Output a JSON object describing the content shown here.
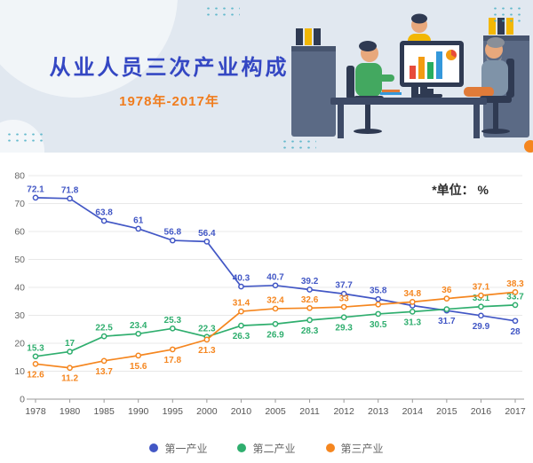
{
  "header": {
    "title": "从业人员三次产业构成",
    "subtitle": "1978年-2017年",
    "title_color": "#3447c3",
    "subtitle_color": "#f07c1d",
    "background_color": "#e1e8f0"
  },
  "chart": {
    "unit_note": "*单位： %"
  },
  "chart_data": {
    "type": "line",
    "title": "从业人员三次产业构成 1978年-2017年",
    "xlabel": "",
    "ylabel": "",
    "ylim": [
      0,
      80
    ],
    "yticks": [
      0,
      10,
      20,
      30,
      40,
      50,
      60,
      70,
      80
    ],
    "grid": true,
    "legend_position": "bottom",
    "categories": [
      "1978",
      "1980",
      "1985",
      "1990",
      "1995",
      "2000",
      "2010",
      "2005",
      "2011",
      "2012",
      "2013",
      "2014",
      "2015",
      "2016",
      "2017"
    ],
    "series": [
      {
        "name": "第一产业",
        "color": "#4257c5",
        "values": [
          72.1,
          71.8,
          63.8,
          61,
          56.8,
          56.4,
          40.3,
          40.7,
          39.2,
          37.7,
          35.8,
          33.5,
          31.7,
          29.9,
          28
        ],
        "labels": [
          "72.1",
          "71.8",
          "63.8",
          "61",
          "56.8",
          "56.4",
          "40.3",
          "40.7",
          "39.2",
          "37.7",
          "35.8",
          "",
          "31.7",
          "29.9",
          "28"
        ],
        "label_side": [
          "above",
          "above",
          "above",
          "above",
          "above",
          "above",
          "above",
          "above",
          "above",
          "above",
          "above",
          "",
          "below",
          "below",
          "below"
        ]
      },
      {
        "name": "第二产业",
        "color": "#2fae6e",
        "values": [
          15.3,
          17,
          22.5,
          23.4,
          25.3,
          22.3,
          26.3,
          26.9,
          28.3,
          29.3,
          30.5,
          31.3,
          32.2,
          33.1,
          33.7
        ],
        "labels": [
          "15.3",
          "17",
          "22.5",
          "23.4",
          "25.3",
          "22.3",
          "26.3",
          "26.9",
          "28.3",
          "29.3",
          "30.5",
          "31.3",
          "",
          "33.1",
          "33.7"
        ],
        "label_side": [
          "above",
          "above",
          "above",
          "above",
          "above",
          "above",
          "below",
          "below",
          "below",
          "below",
          "below",
          "below",
          "",
          "above",
          "above"
        ]
      },
      {
        "name": "第三产业",
        "color": "#f5861f",
        "values": [
          12.6,
          11.2,
          13.7,
          15.6,
          17.8,
          21.3,
          31.4,
          32.4,
          32.6,
          33,
          33.9,
          34.8,
          36,
          37.1,
          38.3
        ],
        "labels": [
          "12.6",
          "11.2",
          "13.7",
          "15.6",
          "17.8",
          "21.3",
          "31.4",
          "32.4",
          "32.6",
          "33",
          "",
          "34.8",
          "36",
          "37.1",
          "38.3"
        ],
        "label_side": [
          "below",
          "below",
          "below",
          "below",
          "below",
          "below",
          "above",
          "above",
          "above",
          "above",
          "",
          "above",
          "above",
          "above",
          "above"
        ]
      }
    ]
  },
  "legend": {
    "items": [
      {
        "label": "第一产业",
        "color": "#4257c5"
      },
      {
        "label": "第二产业",
        "color": "#2fae6e"
      },
      {
        "label": "第三产业",
        "color": "#f5861f"
      }
    ]
  }
}
